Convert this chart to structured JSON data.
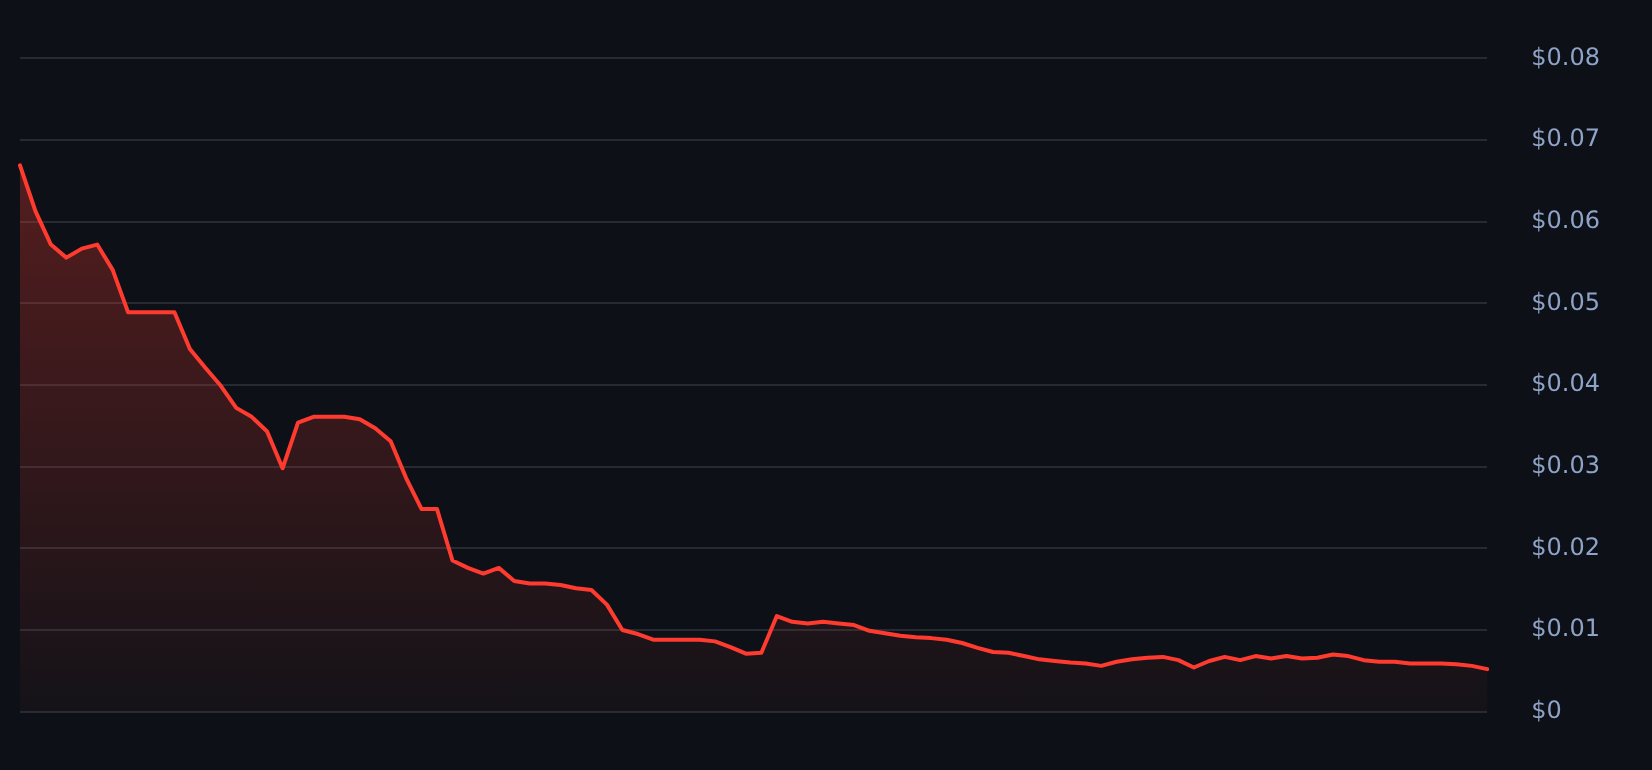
{
  "chart_data": {
    "type": "area",
    "categories": [
      null,
      null,
      null,
      null,
      null,
      null,
      null,
      null,
      null,
      null,
      null,
      null,
      null,
      null,
      null,
      null,
      null,
      null,
      null,
      null,
      null,
      null,
      null,
      null,
      null,
      null,
      null,
      null,
      null,
      null,
      null,
      null,
      null,
      null,
      null,
      null,
      null,
      null,
      null,
      null,
      null,
      null,
      null,
      null,
      null,
      null,
      null,
      null,
      null,
      null,
      null,
      null,
      null,
      null,
      null,
      null,
      null,
      null,
      null,
      null,
      null,
      null,
      null,
      null,
      null,
      null,
      null,
      null,
      null,
      null,
      null,
      null,
      null,
      null,
      null,
      null,
      null,
      null,
      null,
      null,
      null,
      null,
      null,
      null,
      null,
      null,
      null,
      null,
      null,
      null,
      null,
      null,
      null,
      null,
      null,
      null
    ],
    "series": [
      {
        "color": "#ff3b30",
        "values": [
          0.0669,
          0.0613,
          0.0572,
          0.0556,
          0.0567,
          0.0572,
          0.0541,
          0.0489,
          0.0489,
          0.0489,
          0.0489,
          0.0444,
          0.0421,
          0.0399,
          0.0372,
          0.0361,
          0.0343,
          0.0298,
          0.0354,
          0.0361,
          0.0361,
          0.0361,
          0.0358,
          0.0347,
          0.0331,
          0.0286,
          0.0248,
          0.0248,
          0.0185,
          0.0176,
          0.0169,
          0.0176,
          0.016,
          0.0157,
          0.0157,
          0.0155,
          0.0151,
          0.0149,
          0.0131,
          0.01,
          0.0095,
          0.0088,
          0.0088,
          0.0088,
          0.0088,
          0.0086,
          0.0079,
          0.0071,
          0.0072,
          0.0117,
          0.011,
          0.0108,
          0.011,
          0.0108,
          0.0106,
          0.0099,
          0.0096,
          0.0093,
          0.0091,
          0.009,
          0.0088,
          0.0084,
          0.0078,
          0.0073,
          0.0072,
          0.0068,
          0.0064,
          0.0062,
          0.006,
          0.0059,
          0.0056,
          0.0061,
          0.0064,
          0.0066,
          0.0067,
          0.0063,
          0.0054,
          0.0062,
          0.0067,
          0.0063,
          0.0068,
          0.0065,
          0.0068,
          0.0065,
          0.0066,
          0.007,
          0.0068,
          0.0063,
          0.0061,
          0.0061,
          0.0059,
          0.0059,
          0.0059,
          0.0058,
          0.0056,
          0.0052
        ]
      }
    ],
    "ylim": [
      0,
      0.08
    ],
    "yticks": [
      {
        "value": 0,
        "label": "$0"
      },
      {
        "value": 0.01,
        "label": "$0.01"
      },
      {
        "value": 0.02,
        "label": "$0.02"
      },
      {
        "value": 0.03,
        "label": "$0.03"
      },
      {
        "value": 0.04,
        "label": "$0.04"
      },
      {
        "value": 0.05,
        "label": "$0.05"
      },
      {
        "value": 0.06,
        "label": "$0.06"
      },
      {
        "value": 0.07,
        "label": "$0.07"
      },
      {
        "value": 0.08,
        "label": "$0.08"
      }
    ],
    "grid": "y",
    "legend": false,
    "tick_labels": "y",
    "marker": "none",
    "line_style": "solid"
  }
}
